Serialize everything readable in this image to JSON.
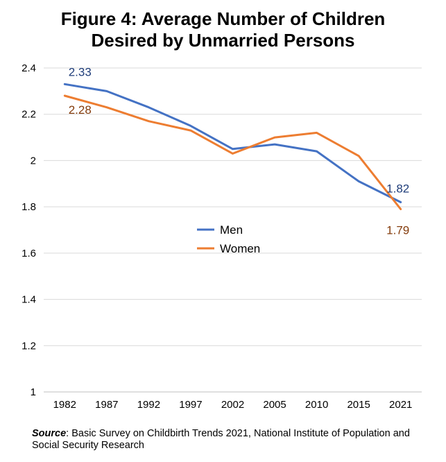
{
  "title_line1": "Figure 4: Average Number of Children",
  "title_line2": "Desired by Unmarried Persons",
  "source_label": "Source",
  "source_text": ": Basic Survey on Childbirth Trends 2021, National Institute of Population and Social Security Research",
  "chart_data": {
    "type": "line",
    "categories": [
      "1982",
      "1987",
      "1992",
      "1997",
      "2002",
      "2005",
      "2010",
      "2015",
      "2021"
    ],
    "ylim": [
      1,
      2.4
    ],
    "yticks": [
      "1",
      "1.2",
      "1.4",
      "1.6",
      "1.8",
      "2",
      "2.2",
      "2.4"
    ],
    "ytick_values": [
      1,
      1.2,
      1.4,
      1.6,
      1.8,
      2,
      2.2,
      2.4
    ],
    "grid": true,
    "legend_placement": "center",
    "series": [
      {
        "name": "Men",
        "color": "#4472C4",
        "label_color": "#1F3D7A",
        "values": [
          2.33,
          2.3,
          2.23,
          2.15,
          2.05,
          2.07,
          2.04,
          1.91,
          1.82
        ],
        "labels": {
          "first": "2.33",
          "last": "1.82"
        }
      },
      {
        "name": "Women",
        "color": "#ED7D31",
        "label_color": "#843C0C",
        "values": [
          2.28,
          2.23,
          2.17,
          2.13,
          2.03,
          2.1,
          2.12,
          2.02,
          1.79
        ],
        "labels": {
          "first": "2.28",
          "last": "1.79"
        }
      }
    ]
  }
}
